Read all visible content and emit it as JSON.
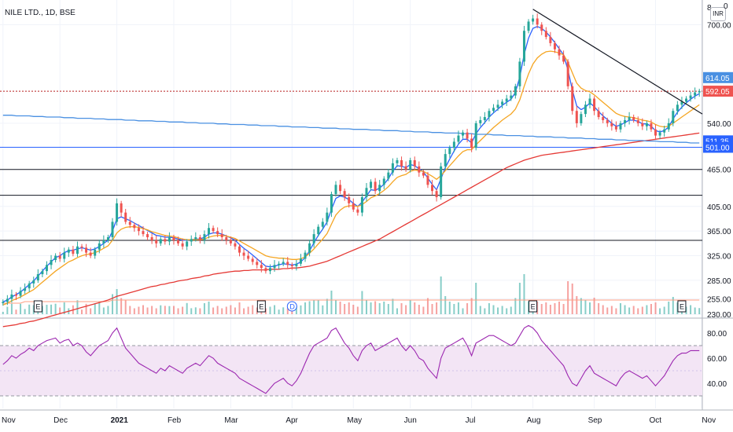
{
  "header": {
    "symbol_title": "NILE LTD., 1D, BSE",
    "currency_badge": "INR",
    "corner_left": "8",
    "corner_right": "0"
  },
  "colors": {
    "up": "#26a69a",
    "down": "#ef5350",
    "ema_fast": "#2962ff",
    "ema_mid": "#0b8043",
    "ma_orange": "#f5a623",
    "ma_red": "#e53935",
    "ma_blue": "#4a90e2",
    "rsi_line": "#9c27b0",
    "rsi_band": "#f3e5f5",
    "trendline": "#131722"
  },
  "chart_data": {
    "type": "candlestick",
    "title": "NILE LTD., 1D, BSE",
    "price_axis": {
      "ticks": [
        700,
        540,
        465,
        405,
        365,
        325,
        285,
        255,
        230
      ],
      "tick_labels": [
        "700.00",
        "540.00",
        "465.00",
        "405.00",
        "365.00",
        "325.00",
        "285.00",
        "255.00",
        "230.00"
      ],
      "price_labels": [
        {
          "value": 614.05,
          "text": "614.05",
          "color": "#4a90e2"
        },
        {
          "value": 592.05,
          "text": "592.05",
          "color": "#ef5350"
        },
        {
          "value": 511.35,
          "text": "511.35",
          "color": "#2962ff"
        },
        {
          "value": 501.0,
          "text": "501.00",
          "color": "#2962ff"
        }
      ]
    },
    "x_axis": {
      "labels": [
        "Nov",
        "Dec",
        "2021",
        "Feb",
        "Mar",
        "Apr",
        "May",
        "Jun",
        "Jul",
        "Aug",
        "Sep",
        "Oct",
        "Nov"
      ]
    },
    "horizontal_lines": [
      {
        "price": 592,
        "style": "dotted",
        "color": "#b71c1c"
      },
      {
        "price": 501,
        "color": "#2962ff"
      },
      {
        "price": 465,
        "color": "#131722"
      },
      {
        "price": 423,
        "color": "#131722"
      },
      {
        "price": 350,
        "color": "#131722"
      }
    ],
    "trendline": {
      "from": {
        "x": "Aug",
        "y": 725
      },
      "to": {
        "x": "Nov",
        "y": 555
      }
    },
    "closes": [
      250,
      255,
      262,
      260,
      268,
      272,
      280,
      285,
      295,
      300,
      310,
      318,
      325,
      320,
      330,
      335,
      328,
      340,
      338,
      330,
      325,
      335,
      345,
      350,
      355,
      380,
      410,
      395,
      380,
      375,
      370,
      365,
      360,
      355,
      350,
      345,
      352,
      348,
      355,
      350,
      345,
      340,
      348,
      352,
      355,
      350,
      360,
      370,
      365,
      360,
      355,
      350,
      345,
      340,
      330,
      325,
      320,
      315,
      310,
      305,
      300,
      305,
      310,
      312,
      315,
      310,
      308,
      312,
      320,
      330,
      345,
      360,
      372,
      380,
      395,
      425,
      440,
      430,
      420,
      410,
      400,
      395,
      420,
      435,
      445,
      430,
      440,
      450,
      460,
      475,
      480,
      470,
      465,
      480,
      470,
      460,
      455,
      440,
      430,
      420,
      470,
      490,
      500,
      510,
      520,
      525,
      515,
      500,
      540,
      545,
      550,
      560,
      565,
      570,
      575,
      580,
      585,
      600,
      640,
      690,
      705,
      710,
      700,
      690,
      680,
      670,
      660,
      650,
      640,
      600,
      560,
      540,
      555,
      570,
      580,
      560,
      550,
      545,
      540,
      535,
      530,
      540,
      545,
      550,
      545,
      540,
      535,
      540,
      530,
      520,
      525,
      530,
      540,
      560,
      570,
      575,
      580,
      585,
      590,
      592
    ],
    "moving_averages": [
      {
        "color": "#2962ff",
        "values": [
          250,
          253,
          258,
          262,
          266,
          272,
          278,
          284,
          292,
          300,
          308,
          315,
          322,
          325,
          330,
          333,
          334,
          336,
          338,
          336,
          334,
          336,
          340,
          345,
          350,
          365,
          385,
          388,
          385,
          382,
          378,
          374,
          370,
          366,
          362,
          358,
          357,
          355,
          355,
          354,
          352,
          350,
          350,
          351,
          352,
          352,
          355,
          360,
          362,
          362,
          360,
          357,
          354,
          350,
          343,
          337,
          332,
          326,
          320,
          314,
          308,
          307,
          308,
          310,
          312,
          311,
          310,
          311,
          315,
          322,
          333,
          346,
          358,
          368,
          380,
          400,
          418,
          422,
          420,
          416,
          410,
          405,
          412,
          422,
          432,
          431,
          435,
          441,
          450,
          462,
          471,
          470,
          468,
          473,
          471,
          466,
          461,
          451,
          441,
          432,
          450,
          468,
          482,
          495,
          506,
          514,
          514,
          508,
          523,
          533,
          541,
          550,
          557,
          563,
          569,
          574,
          579,
          590,
          615,
          652,
          678,
          694,
          697,
          694,
          688,
          680,
          671,
          661,
          651,
          626,
          594,
          568,
          562,
          566,
          573,
          567,
          559,
          552,
          546,
          540,
          535,
          537,
          541,
          545,
          545,
          543,
          539,
          539,
          535,
          528,
          526,
          528,
          534,
          547,
          558,
          566,
          573,
          579,
          584,
          588
        ]
      },
      {
        "color": "#f5a623",
        "values": [
          245,
          248,
          252,
          255,
          258,
          262,
          266,
          270,
          276,
          282,
          288,
          294,
          300,
          305,
          310,
          315,
          318,
          322,
          325,
          327,
          328,
          330,
          333,
          337,
          341,
          350,
          362,
          368,
          371,
          372,
          372,
          371,
          369,
          367,
          364,
          362,
          360,
          358,
          357,
          356,
          354,
          352,
          351,
          351,
          351,
          351,
          352,
          355,
          357,
          358,
          358,
          357,
          355,
          353,
          349,
          345,
          341,
          337,
          333,
          329,
          325,
          323,
          322,
          321,
          321,
          320,
          319,
          319,
          320,
          323,
          329,
          336,
          344,
          352,
          361,
          376,
          391,
          399,
          404,
          406,
          406,
          405,
          408,
          413,
          419,
          422,
          426,
          431,
          437,
          445,
          452,
          455,
          457,
          462,
          464,
          463,
          462,
          458,
          454,
          449,
          455,
          463,
          471,
          479,
          487,
          494,
          497,
          497,
          505,
          512,
          519,
          526,
          533,
          539,
          545,
          550,
          555,
          563,
          578,
          600,
          620,
          636,
          646,
          652,
          656,
          657,
          656,
          654,
          651,
          639,
          622,
          605,
          597,
          593,
          591,
          586,
          580,
          574,
          568,
          562,
          556,
          553,
          551,
          550,
          549,
          547,
          545,
          544,
          542,
          538,
          535,
          534,
          535,
          540,
          545,
          550,
          555,
          560,
          565,
          570
        ]
      },
      {
        "color": "#e53935",
        "values": [
          210,
          211,
          212,
          213,
          215,
          216,
          218,
          219,
          221,
          223,
          225,
          227,
          229,
          231,
          233,
          235,
          237,
          239,
          241,
          243,
          245,
          247,
          249,
          251,
          253,
          256,
          259,
          261,
          263,
          265,
          267,
          269,
          271,
          273,
          275,
          276,
          278,
          279,
          281,
          282,
          284,
          285,
          286,
          288,
          289,
          290,
          292,
          293,
          295,
          296,
          297,
          298,
          299,
          300,
          300,
          301,
          301,
          302,
          302,
          302,
          302,
          303,
          303,
          303,
          304,
          304,
          305,
          305,
          306,
          307,
          308,
          310,
          312,
          314,
          316,
          319,
          322,
          325,
          328,
          331,
          334,
          337,
          340,
          343,
          346,
          349,
          352,
          356,
          360,
          364,
          368,
          372,
          376,
          380,
          384,
          388,
          392,
          396,
          400,
          404,
          408,
          412,
          416,
          420,
          424,
          428,
          432,
          436,
          440,
          444,
          448,
          452,
          456,
          460,
          464,
          468,
          471,
          474,
          477,
          480,
          482,
          484,
          486,
          488,
          489,
          490,
          491,
          492,
          493,
          494,
          495,
          496,
          497,
          498,
          499,
          500,
          501,
          502,
          503,
          504,
          505,
          506,
          507,
          508,
          509,
          510,
          511,
          512,
          513,
          514,
          515,
          516,
          517,
          518,
          519,
          520,
          521,
          522,
          523,
          524
        ]
      },
      {
        "color": "#4a90e2",
        "values": [
          553,
          553,
          553,
          552,
          552,
          552,
          552,
          551,
          551,
          551,
          550,
          550,
          550,
          550,
          549,
          549,
          549,
          548,
          548,
          548,
          548,
          547,
          547,
          547,
          546,
          546,
          546,
          546,
          545,
          545,
          545,
          544,
          544,
          544,
          544,
          543,
          543,
          543,
          542,
          542,
          542,
          542,
          541,
          541,
          541,
          540,
          540,
          540,
          540,
          539,
          539,
          539,
          538,
          538,
          538,
          538,
          537,
          537,
          537,
          536,
          536,
          536,
          536,
          535,
          535,
          535,
          534,
          534,
          534,
          534,
          533,
          533,
          533,
          532,
          532,
          532,
          532,
          531,
          531,
          531,
          530,
          530,
          530,
          530,
          529,
          529,
          529,
          528,
          528,
          528,
          528,
          527,
          527,
          527,
          526,
          526,
          526,
          526,
          525,
          525,
          525,
          524,
          524,
          524,
          524,
          523,
          523,
          523,
          522,
          522,
          522,
          522,
          521,
          521,
          521,
          520,
          520,
          520,
          520,
          519,
          519,
          519,
          518,
          518,
          518,
          518,
          517,
          517,
          517,
          516,
          516,
          516,
          516,
          515,
          515,
          515,
          514,
          514,
          514,
          514,
          513,
          513,
          513,
          512,
          512,
          512,
          512,
          511,
          511,
          511,
          510,
          510,
          510,
          510,
          509,
          509,
          509,
          508,
          508,
          508
        ]
      }
    ],
    "volume_ma": [
      2,
      2,
      2,
      2,
      2,
      3,
      3,
      3,
      3,
      3,
      3,
      3,
      3,
      3,
      3,
      3,
      3,
      3,
      3,
      3,
      3,
      3,
      3,
      3,
      3,
      4,
      4,
      4,
      4,
      4,
      4,
      4,
      4,
      4,
      4,
      4,
      4,
      4,
      4,
      4,
      4,
      4,
      4,
      4,
      4,
      4,
      4,
      4,
      4,
      4,
      4,
      4,
      4,
      4,
      4,
      4,
      4,
      4,
      4,
      4,
      4,
      4,
      4,
      4,
      4,
      4,
      4,
      4,
      4,
      4,
      4,
      4,
      4,
      4,
      4,
      4,
      4,
      4,
      4,
      4,
      4,
      4,
      4,
      4,
      4,
      4,
      4,
      4,
      4,
      4,
      4,
      4,
      4,
      4,
      4,
      4,
      4,
      4,
      4,
      4,
      4,
      4,
      4,
      4,
      4,
      4,
      4,
      4,
      4,
      4,
      4,
      4,
      4,
      4,
      4,
      4,
      4,
      4,
      4,
      4,
      4,
      4,
      4,
      4,
      4,
      4,
      4,
      4,
      4,
      4,
      4,
      4,
      4,
      4,
      4,
      4,
      4,
      4,
      4,
      4,
      4,
      4,
      4,
      4,
      4,
      4,
      4,
      4,
      4,
      4,
      4,
      4,
      4,
      4,
      4,
      4,
      4,
      4,
      4,
      4
    ],
    "event_markers": [
      {
        "label": "E",
        "index": 8
      },
      {
        "label": "E",
        "index": 59
      },
      {
        "label": "D",
        "index": 66
      },
      {
        "label": "E",
        "index": 121
      },
      {
        "label": "E",
        "index": 155
      }
    ],
    "rsi": {
      "ticks": [
        80,
        60,
        40
      ],
      "tick_labels": [
        "80.00",
        "60.00",
        "40.00"
      ],
      "band": [
        30,
        70
      ],
      "values": [
        55,
        58,
        62,
        60,
        63,
        65,
        68,
        66,
        70,
        72,
        74,
        75,
        76,
        72,
        74,
        75,
        70,
        72,
        70,
        65,
        62,
        66,
        70,
        72,
        74,
        80,
        84,
        76,
        68,
        64,
        60,
        56,
        54,
        52,
        50,
        48,
        52,
        50,
        54,
        52,
        50,
        48,
        52,
        54,
        56,
        54,
        58,
        62,
        60,
        56,
        54,
        52,
        50,
        48,
        44,
        42,
        40,
        38,
        36,
        34,
        32,
        36,
        40,
        42,
        44,
        40,
        38,
        42,
        48,
        56,
        64,
        70,
        72,
        74,
        76,
        82,
        84,
        78,
        72,
        68,
        62,
        58,
        66,
        70,
        72,
        66,
        68,
        70,
        72,
        74,
        76,
        70,
        66,
        70,
        66,
        60,
        58,
        52,
        48,
        44,
        60,
        68,
        70,
        72,
        74,
        76,
        70,
        62,
        72,
        74,
        76,
        78,
        78,
        76,
        74,
        72,
        70,
        72,
        78,
        84,
        86,
        84,
        80,
        74,
        70,
        66,
        62,
        58,
        54,
        46,
        40,
        38,
        44,
        50,
        54,
        48,
        46,
        44,
        42,
        40,
        38,
        44,
        48,
        50,
        48,
        46,
        44,
        46,
        42,
        38,
        42,
        46,
        52,
        58,
        62,
        64,
        64,
        66,
        66,
        66
      ]
    }
  }
}
